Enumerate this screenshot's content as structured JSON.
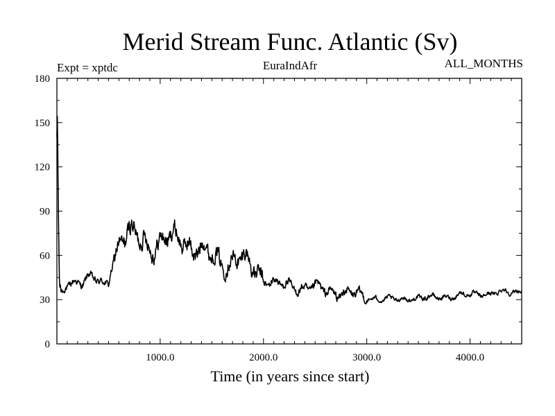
{
  "chart_data": {
    "type": "line",
    "title": "Merid Stream Func. Atlantic (Sv)",
    "annotations": {
      "left": "Expt = xptdc",
      "center": "EuraIndAfr",
      "right": "ALL_MONTHS"
    },
    "xlabel": "Time (in years since start)",
    "ylabel": "",
    "xlim": [
      0,
      4500
    ],
    "ylim": [
      0,
      180
    ],
    "x_ticks": [
      1000,
      2000,
      3000,
      4000
    ],
    "x_tick_labels": [
      "1000.0",
      "2000.0",
      "3000.0",
      "4000.0"
    ],
    "y_ticks": [
      0,
      30,
      60,
      90,
      120,
      150,
      180
    ],
    "y_tick_labels": [
      "0",
      "30",
      "60",
      "90",
      "120",
      "150",
      "180"
    ],
    "grid": false,
    "line_color": "#000000",
    "series": [
      {
        "x": [
          0,
          5,
          10,
          15,
          25,
          40,
          60,
          80,
          100,
          150,
          200,
          250,
          300,
          350,
          400,
          450,
          500,
          520,
          550,
          600,
          650,
          700,
          750,
          800,
          850,
          900,
          950,
          1000,
          1050,
          1100,
          1150,
          1200,
          1250,
          1300,
          1350,
          1400,
          1450,
          1500,
          1550,
          1600,
          1650,
          1700,
          1750,
          1800,
          1850,
          1900,
          1950,
          2000,
          2050,
          2100,
          2150,
          2200,
          2250,
          2300,
          2350,
          2400,
          2450,
          2500,
          2550,
          2600,
          2650,
          2700,
          2750,
          2800,
          2850,
          2900,
          2950,
          3000,
          3050,
          3100,
          3150,
          3200,
          3300,
          3400,
          3500,
          3600,
          3700,
          3800,
          3900,
          4000,
          4100,
          4200,
          4300,
          4400,
          4500
        ],
        "values": [
          140,
          158,
          120,
          85,
          40,
          33,
          34,
          38,
          40,
          42,
          43,
          42,
          45,
          44,
          42,
          40,
          42,
          50,
          58,
          68,
          72,
          74,
          73,
          72,
          71,
          68,
          67,
          68,
          70,
          71,
          72,
          72,
          70,
          66,
          64,
          63,
          62,
          60,
          58,
          57,
          56,
          56,
          57,
          56,
          55,
          52,
          49,
          44,
          42,
          41,
          40,
          40,
          39,
          39,
          38,
          38,
          37,
          38,
          37,
          36,
          36,
          35,
          35,
          34,
          34,
          33,
          32,
          31,
          31,
          31,
          30,
          30,
          30,
          31,
          31,
          31,
          32,
          32,
          33,
          33,
          34,
          34,
          35,
          35,
          36
        ]
      }
    ]
  }
}
